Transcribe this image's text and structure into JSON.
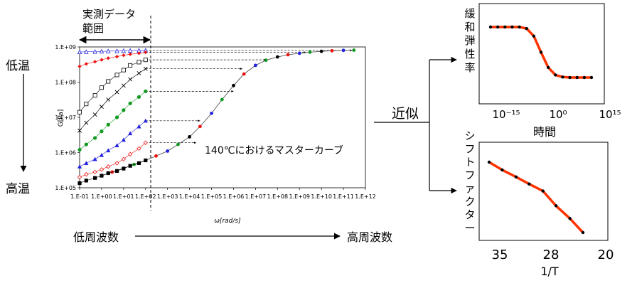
{
  "range_label_1": "実測データ",
  "range_label_2": "範囲",
  "temp_low": "低温",
  "temp_high": "高温",
  "ylabel": "G[Pa]",
  "xlabel": "ω[rad/s]",
  "master_curve_label": "140℃におけるマスターカーブ",
  "freq_low": "低周波数",
  "freq_high": "高周波数",
  "approx_label": "近似",
  "colors": {
    "fit": "#ff3300",
    "points": "#000000",
    "blue": "#2222dd",
    "red": "#ee1111",
    "green": "#119922"
  },
  "chart_data": [
    {
      "type": "scatter",
      "xscale": "log",
      "yscale": "log",
      "xlim": [
        0.1,
        1000000000000.0
      ],
      "ylim": [
        100000.0,
        1000000000.0
      ],
      "x_ticks": [
        "1.E-01",
        "1.E+00",
        "1.E+01",
        "1.E+02",
        "1.E+03",
        "1.E+04",
        "1.E+05",
        "1.E+06",
        "1.E+07",
        "1.E+08",
        "1.E+09",
        "1.E+10",
        "1.E+11",
        "1.E+12"
      ],
      "y_ticks": [
        "1.E+05",
        "1.E+06",
        "1.E+07",
        "1.E+08",
        "1.E+09"
      ],
      "measured_series": [
        {
          "marker": "triangle-open",
          "color": "#2222dd",
          "x": [
            0.1,
            0.2,
            0.5,
            1,
            2,
            5,
            10,
            20,
            50,
            100
          ],
          "y": [
            720000000.0,
            730000000.0,
            740000000.0,
            750000000.0,
            760000000.0,
            770000000.0,
            780000000.0,
            790000000.0,
            795000000.0,
            800000000.0
          ]
        },
        {
          "marker": "diamond-filled",
          "color": "#ee1111",
          "x": [
            0.1,
            0.2,
            0.5,
            1,
            2,
            5,
            10,
            20,
            50,
            100
          ],
          "y": [
            280000000.0,
            330000000.0,
            380000000.0,
            430000000.0,
            480000000.0,
            530000000.0,
            580000000.0,
            620000000.0,
            660000000.0,
            700000000.0
          ]
        },
        {
          "marker": "square-open",
          "color": "#000000",
          "x": [
            0.1,
            0.2,
            0.5,
            1,
            2,
            5,
            10,
            20,
            50,
            100
          ],
          "y": [
            14000000.0,
            24000000.0,
            42000000.0,
            70000000.0,
            105000000.0,
            160000000.0,
            220000000.0,
            300000000.0,
            370000000.0,
            430000000.0
          ]
        },
        {
          "marker": "cross",
          "color": "#000000",
          "x": [
            0.1,
            0.2,
            0.5,
            1,
            2,
            5,
            10,
            20,
            50,
            100
          ],
          "y": [
            4200000.0,
            7000000.0,
            12000000.0,
            20000000.0,
            32000000.0,
            52000000.0,
            80000000.0,
            120000000.0,
            180000000.0,
            240000000.0
          ]
        },
        {
          "marker": "circle-filled",
          "color": "#119922",
          "x": [
            0.1,
            0.2,
            0.5,
            1,
            2,
            5,
            10,
            20,
            50,
            100
          ],
          "y": [
            1200000.0,
            1700000.0,
            2600000.0,
            4000000.0,
            6200000.0,
            10000000.0,
            16000000.0,
            25000000.0,
            38000000.0,
            55000000.0
          ]
        },
        {
          "marker": "triangle-filled",
          "color": "#2222dd",
          "x": [
            0.1,
            0.2,
            0.5,
            1,
            2,
            5,
            10,
            20,
            50,
            100
          ],
          "y": [
            400000.0,
            500000.0,
            650000.0,
            850000.0,
            1150000.0,
            1600000.0,
            2300000.0,
            3500000.0,
            5500000.0,
            8000000.0
          ]
        },
        {
          "marker": "diamond-open",
          "color": "#ee1111",
          "x": [
            0.1,
            0.2,
            0.5,
            1,
            2,
            5,
            10,
            20,
            50,
            100
          ],
          "y": [
            200000.0,
            240000.0,
            280000.0,
            330000.0,
            400000.0,
            500000.0,
            650000.0,
            900000.0,
            1300000.0,
            1900000.0
          ]
        },
        {
          "marker": "square-filled",
          "color": "#000000",
          "x": [
            0.1,
            0.2,
            0.5,
            1,
            2,
            5,
            10,
            20,
            50,
            100
          ],
          "y": [
            135000.0,
            160000.0,
            190000.0,
            220000.0,
            260000.0,
            300000.0,
            350000.0,
            420000.0,
            500000.0,
            600000.0
          ]
        }
      ],
      "master_curve": {
        "x": [
          1,
          3,
          10,
          30,
          100,
          300,
          1000,
          3000,
          10000,
          30000,
          100000,
          300000,
          1000000.0,
          3000000.0,
          10000000.0,
          30000000.0,
          100000000.0,
          300000000.0,
          1000000000.0,
          3000000000.0,
          10000000000.0,
          30000000000.0,
          100000000000.0,
          300000000000.0
        ],
        "y": [
          220000.0,
          280000.0,
          360000.0,
          460000.0,
          600000.0,
          800000.0,
          1100000.0,
          1700000.0,
          2800000.0,
          5500000.0,
          13000000.0,
          32000000.0,
          80000000.0,
          170000000.0,
          300000000.0,
          420000000.0,
          520000000.0,
          600000000.0,
          660000000.0,
          710000000.0,
          750000000.0,
          780000000.0,
          800000000.0,
          810000000.0
        ]
      }
    },
    {
      "type": "line",
      "ylabel": "緩和弾性率",
      "xlabel": "時間",
      "x_ticks": [
        "10⁻¹⁵",
        "10⁰",
        "10¹⁵"
      ],
      "x": [
        1,
        2,
        3,
        4,
        5,
        6,
        7,
        8,
        9,
        10,
        11,
        12,
        13,
        14,
        15
      ],
      "y": [
        1.0,
        1.0,
        1.0,
        1.0,
        1.0,
        0.97,
        0.82,
        0.5,
        0.2,
        0.05,
        0.01,
        0.0,
        0.0,
        0.0,
        0.0
      ]
    },
    {
      "type": "line",
      "ylabel": "シフトファクター",
      "xlabel": "1/T",
      "x_ticks": [
        "35",
        "28",
        "20"
      ],
      "x": [
        35,
        33.3,
        31.5,
        29.8,
        28,
        26.3,
        24.5,
        22.8
      ],
      "y": [
        1.0,
        0.89,
        0.79,
        0.69,
        0.59,
        0.38,
        0.2,
        0.0
      ]
    }
  ]
}
